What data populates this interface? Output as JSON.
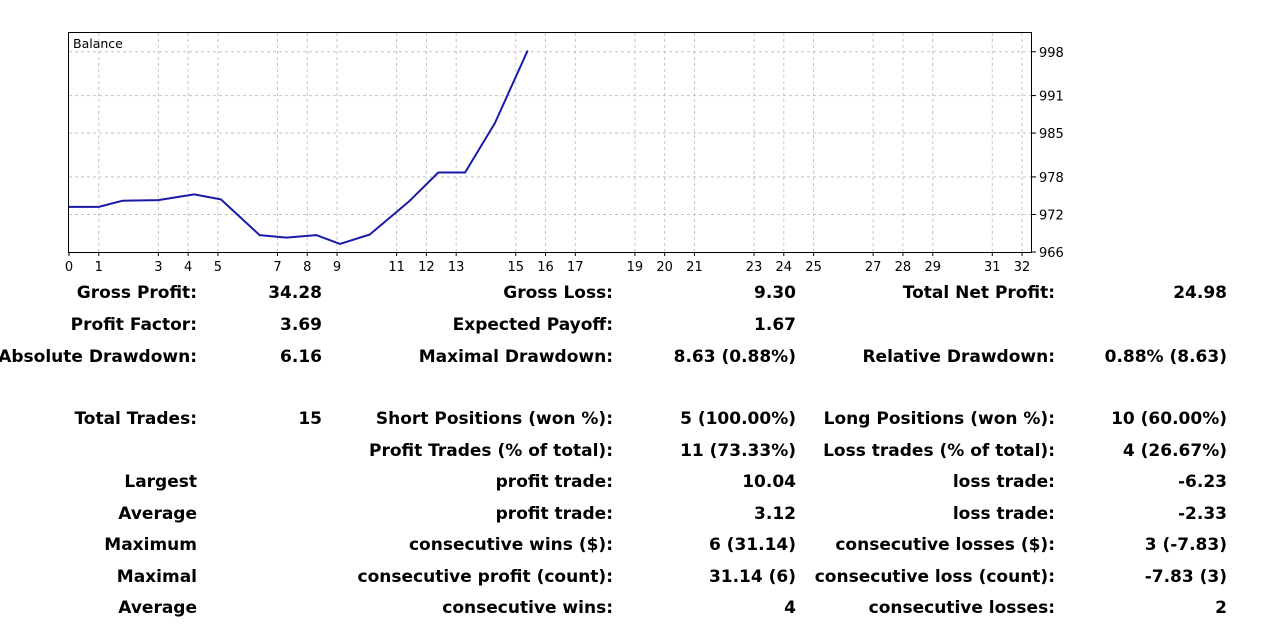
{
  "chart_data": {
    "type": "line",
    "title": "Balance",
    "x_ticks": [
      0,
      1,
      3,
      4,
      5,
      7,
      8,
      9,
      11,
      12,
      13,
      15,
      16,
      17,
      19,
      20,
      21,
      23,
      24,
      25,
      27,
      28,
      29,
      31,
      32
    ],
    "y_ticks": [
      966,
      972,
      978,
      985,
      991,
      998
    ],
    "ylim": [
      966,
      1001
    ],
    "grid": true,
    "series": [
      {
        "color": "#1a1aa8",
        "points": [
          [
            0,
            973.2
          ],
          [
            1,
            973.2
          ],
          [
            1.8,
            974.2
          ],
          [
            3,
            974.3
          ],
          [
            4.2,
            975.2
          ],
          [
            5.1,
            974.4
          ],
          [
            6.4,
            968.7
          ],
          [
            7.3,
            968.3
          ],
          [
            8.3,
            968.7
          ],
          [
            9.1,
            967.3
          ],
          [
            10.1,
            968.8
          ],
          [
            11.4,
            974.0
          ],
          [
            12.4,
            978.7
          ],
          [
            13.3,
            978.7
          ],
          [
            14.3,
            986.6
          ],
          [
            15.4,
            998.2
          ]
        ]
      }
    ]
  },
  "stats": {
    "col1": [
      {
        "label": "Gross Profit:",
        "value": "34.28"
      },
      {
        "label": "Profit Factor:",
        "value": "3.69"
      },
      {
        "label": "Absolute Drawdown:",
        "value": "6.16"
      },
      {
        "label": "Total Trades:",
        "value": "15"
      },
      {
        "label": "Largest",
        "value": ""
      },
      {
        "label": "Average",
        "value": ""
      },
      {
        "label": "Maximum",
        "value": ""
      },
      {
        "label": "Maximal",
        "value": ""
      },
      {
        "label": "Average",
        "value": ""
      }
    ],
    "col2": [
      {
        "label": "Gross Loss:",
        "value": "9.30"
      },
      {
        "label": "Expected Payoff:",
        "value": "1.67"
      },
      {
        "label": "Maximal Drawdown:",
        "value": "8.63 (0.88%)"
      },
      {
        "label": "Short Positions (won %):",
        "value": "5 (100.00%)"
      },
      {
        "label": "Profit Trades (% of total):",
        "value": "11 (73.33%)"
      },
      {
        "label": "profit trade:",
        "value": "10.04"
      },
      {
        "label": "profit trade:",
        "value": "3.12"
      },
      {
        "label": "consecutive wins ($):",
        "value": "6 (31.14)"
      },
      {
        "label": "consecutive profit (count):",
        "value": "31.14 (6)"
      },
      {
        "label": "consecutive wins:",
        "value": "4"
      }
    ],
    "col3": [
      {
        "label": "Total Net Profit:",
        "value": "24.98"
      },
      {
        "label": "Relative Drawdown:",
        "value": "0.88% (8.63)"
      },
      {
        "label": "Long Positions (won %):",
        "value": "10 (60.00%)"
      },
      {
        "label": "Loss trades (% of total):",
        "value": "4 (26.67%)"
      },
      {
        "label": "loss trade:",
        "value": "-6.23"
      },
      {
        "label": "loss trade:",
        "value": "-2.33"
      },
      {
        "label": "consecutive losses ($):",
        "value": "3 (-7.83)"
      },
      {
        "label": "consecutive loss (count):",
        "value": "-7.83 (3)"
      },
      {
        "label": "consecutive losses:",
        "value": "2"
      }
    ]
  }
}
